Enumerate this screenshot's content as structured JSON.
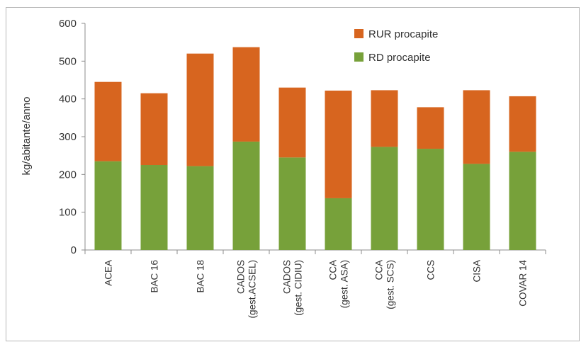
{
  "chart_data": {
    "type": "bar",
    "stacked": true,
    "ylabel": "kg/abitante/anno",
    "ylim": [
      0,
      600
    ],
    "yticks": [
      0,
      100,
      200,
      300,
      400,
      500,
      600
    ],
    "grid": false,
    "legend_position": "top-right",
    "categories": [
      [
        "ACEA"
      ],
      [
        "BAC 16"
      ],
      [
        "BAC 18"
      ],
      [
        "CADOS",
        "(gest.ACSEL)"
      ],
      [
        "CADOS",
        "(gest. CIDIU)"
      ],
      [
        "CCA",
        "(gest. ASA)"
      ],
      [
        "CCA",
        "(gest. SCS)"
      ],
      [
        "CCS"
      ],
      [
        "CISA"
      ],
      [
        "COVAR 14"
      ]
    ],
    "series": [
      {
        "name": "RD procapite",
        "color": "#77a13a",
        "values": [
          235,
          225,
          222,
          287,
          245,
          137,
          273,
          268,
          228,
          260
        ]
      },
      {
        "name": "RUR procapite",
        "color": "#d7651f",
        "values": [
          210,
          190,
          298,
          250,
          185,
          285,
          150,
          110,
          195,
          147
        ]
      }
    ],
    "legend_order": [
      "RUR procapite",
      "RD procapite"
    ]
  }
}
